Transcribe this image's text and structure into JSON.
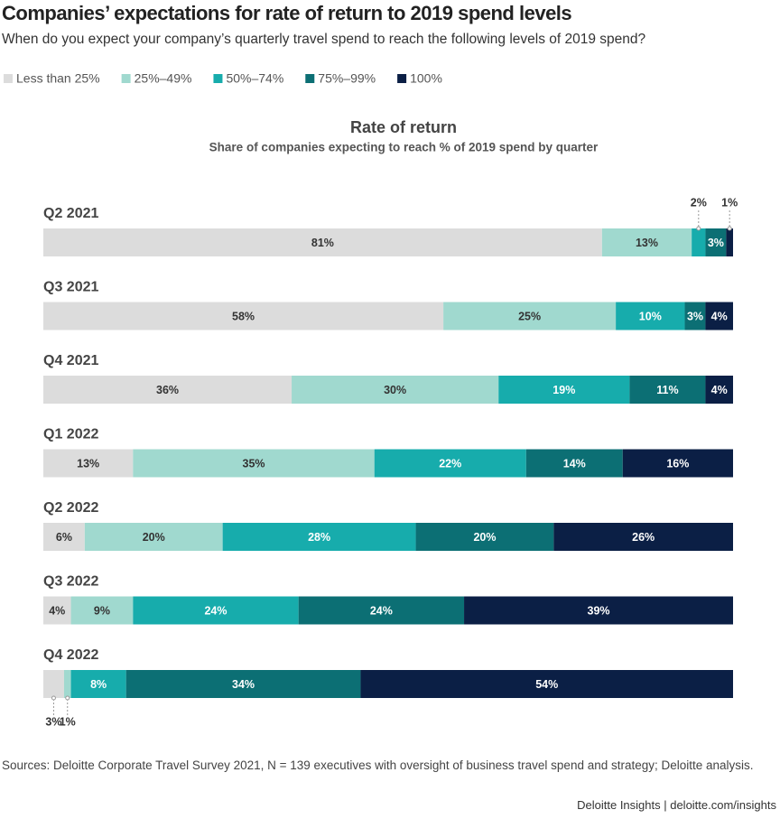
{
  "header": {
    "title": "Companies’ expectations for rate of return to 2019 spend levels",
    "subtitle": "When do you expect your company’s quarterly travel spend to reach the following levels of 2019 spend?"
  },
  "chart_data": {
    "type": "stacked_bar",
    "orientation": "horizontal",
    "title": "Rate of return",
    "subtitle": "Share of companies expecting to reach % of 2019 spend by quarter",
    "categories": [
      "Q2 2021",
      "Q3 2021",
      "Q4 2021",
      "Q1 2022",
      "Q2 2022",
      "Q3 2022",
      "Q4 2022"
    ],
    "series": [
      {
        "name": "Less than 25%",
        "color": "#dcdcdc",
        "values": [
          81,
          58,
          36,
          13,
          6,
          4,
          3
        ],
        "value_labels": [
          "81%",
          "58%",
          "36%",
          "13%",
          "6%",
          "4%",
          "3%"
        ]
      },
      {
        "name": "25%–49%",
        "color": "#a0d9cf",
        "values": [
          13,
          25,
          30,
          35,
          20,
          9,
          1
        ],
        "value_labels": [
          "13%",
          "25%",
          "30%",
          "35%",
          "20%",
          "9%",
          "1%"
        ]
      },
      {
        "name": "50%–74%",
        "color": "#17acac",
        "values": [
          2,
          10,
          19,
          22,
          28,
          24,
          8
        ],
        "value_labels": [
          "2%",
          "10%",
          "19%",
          "22%",
          "28%",
          "24%",
          "8%"
        ]
      },
      {
        "name": "75%–99%",
        "color": "#0c6f74",
        "values": [
          3,
          3,
          11,
          14,
          20,
          24,
          34
        ],
        "value_labels": [
          "3%",
          "3%",
          "11%",
          "14%",
          "20%",
          "24%",
          "34%"
        ]
      },
      {
        "name": "100%",
        "color": "#0b1f45",
        "values": [
          1,
          4,
          4,
          16,
          26,
          39,
          54
        ],
        "value_labels": [
          "1%",
          "4%",
          "4%",
          "16%",
          "26%",
          "39%",
          "54%"
        ]
      }
    ]
  },
  "footer": {
    "sources": "Sources: Deloitte Corporate Travel Survey 2021, N = 139 executives with oversight of business travel spend and strategy; Deloitte analysis.",
    "credit": "Deloitte Insights | deloitte.com/insights"
  }
}
